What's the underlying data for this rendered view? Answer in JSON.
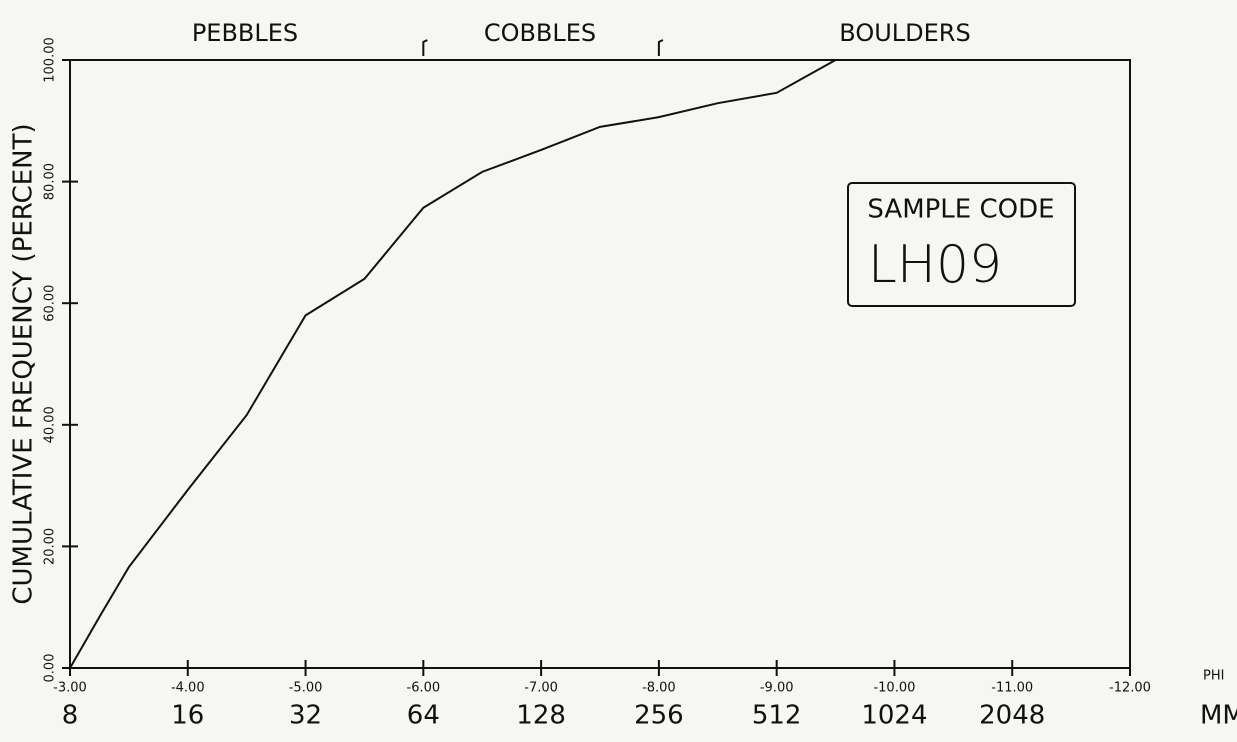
{
  "chart_data": {
    "type": "line",
    "y_label": "CUMULATIVE FREQUENCY (PERCENT)",
    "x_label": "PHI",
    "x2_label": "MM",
    "size_classes": [
      "PEBBLES",
      "COBBLES",
      "BOULDERS"
    ],
    "size_class_boundaries": [
      -6,
      -8
    ],
    "annotation_title": "SAMPLE CODE",
    "annotation_code": "LH09",
    "x": [
      -3.0,
      -3.25,
      -3.5,
      -4.0,
      -4.5,
      -5.0,
      -5.5,
      -6.0,
      -6.5,
      -7.0,
      -7.5,
      -8.0,
      -8.5,
      -9.0,
      -9.5
    ],
    "values": [
      0,
      8.4,
      16.6,
      29.3,
      41.6,
      58,
      64,
      75.7,
      81.6,
      85.2,
      89,
      90.6,
      92.9,
      94.6,
      100
    ],
    "color": "#111111",
    "xlim": [
      -3,
      -12
    ],
    "xticks": [
      {
        "value": -3,
        "label": "-3.00"
      },
      {
        "value": -4,
        "label": "-4.00"
      },
      {
        "value": -5,
        "label": "-5.00"
      },
      {
        "value": -6,
        "label": "-6.00"
      },
      {
        "value": -7,
        "label": "-7.00"
      },
      {
        "value": -8,
        "label": "-8.00"
      },
      {
        "value": -9,
        "label": "-9.00"
      },
      {
        "value": -10,
        "label": "-10.00"
      },
      {
        "value": -11,
        "label": "-11.00"
      },
      {
        "value": -12,
        "label": "-12.00"
      }
    ],
    "mm_labels": [
      8,
      16,
      32,
      64,
      128,
      256,
      512,
      1024,
      2048
    ],
    "ylim": [
      0,
      100
    ],
    "yticks": [
      {
        "value": 0,
        "label": "0.00"
      },
      {
        "value": 20,
        "label": "20.00"
      },
      {
        "value": 40,
        "label": "40.00"
      },
      {
        "value": 60,
        "label": "60.00"
      },
      {
        "value": 80,
        "label": "80.00"
      },
      {
        "value": 100,
        "label": "100.00"
      }
    ]
  }
}
